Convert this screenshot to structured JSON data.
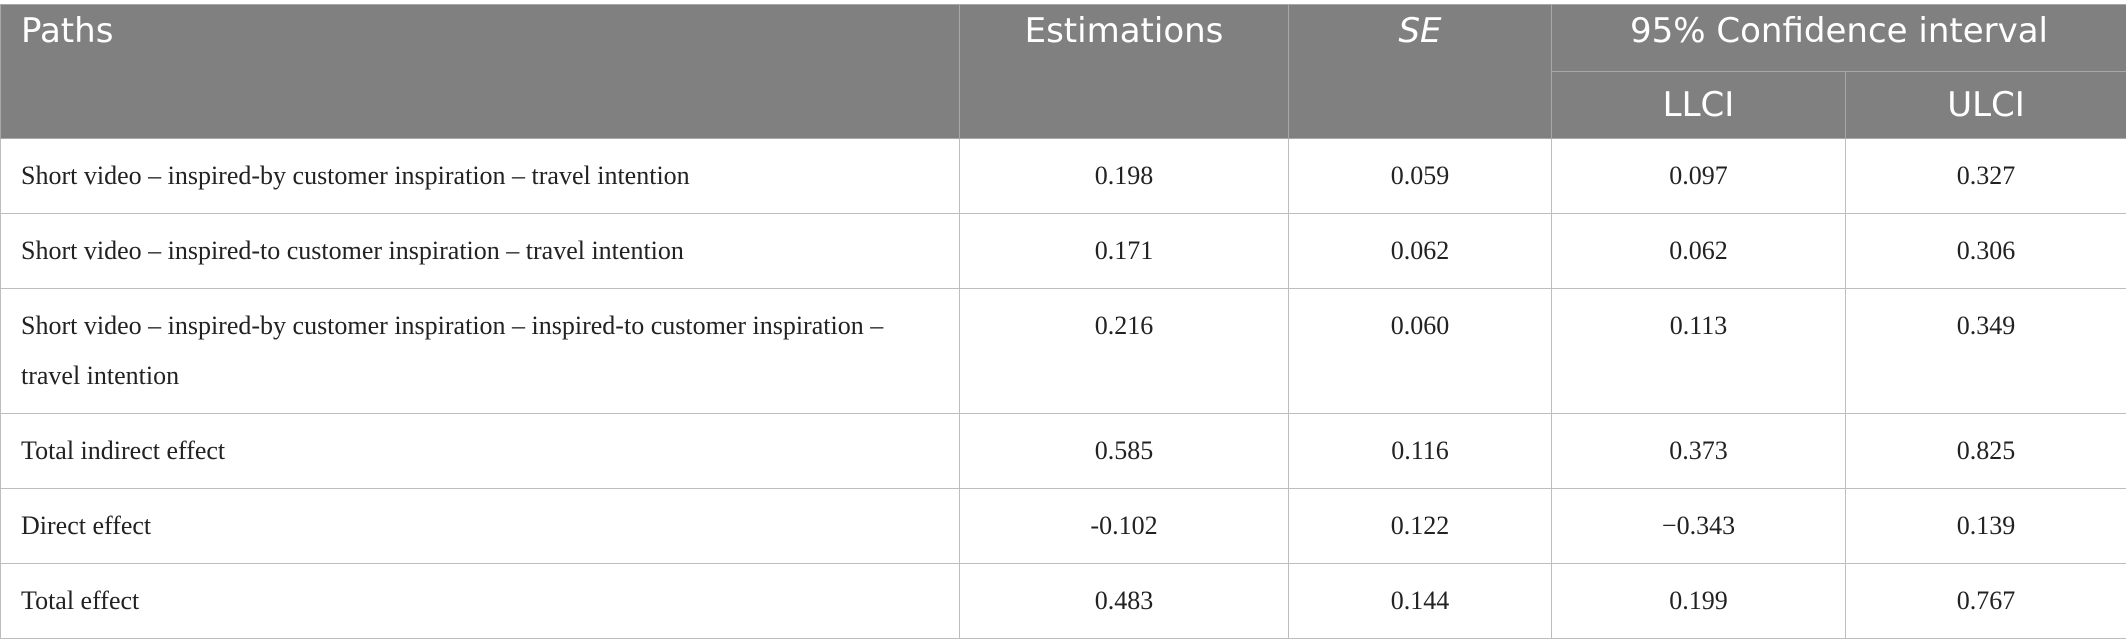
{
  "header": {
    "paths": "Paths",
    "estimations": "Estimations",
    "se": "SE",
    "ci": "95% Confidence interval",
    "llci": "LLCI",
    "ulci": "ULCI"
  },
  "rows": [
    {
      "path": "Short video – inspired-by customer inspiration – travel intention",
      "est": "0.198",
      "se": "0.059",
      "llci": "0.097",
      "ulci": "0.327"
    },
    {
      "path": "Short video – inspired-to customer inspiration – travel intention",
      "est": "0.171",
      "se": "0.062",
      "llci": "0.062",
      "ulci": "0.306"
    },
    {
      "path": "Short video – inspired-by customer inspiration – inspired-to customer inspiration – travel intention",
      "est": "0.216",
      "se": "0.060",
      "llci": "0.113",
      "ulci": "0.349"
    },
    {
      "path": "Total indirect effect",
      "est": "0.585",
      "se": "0.116",
      "llci": "0.373",
      "ulci": "0.825"
    },
    {
      "path": "Direct effect",
      "est": "-0.102",
      "se": "0.122",
      "llci": "−0.343",
      "ulci": "0.139"
    },
    {
      "path": "Total effect",
      "est": "0.483",
      "se": "0.144",
      "llci": "0.199",
      "ulci": "0.767"
    }
  ]
}
